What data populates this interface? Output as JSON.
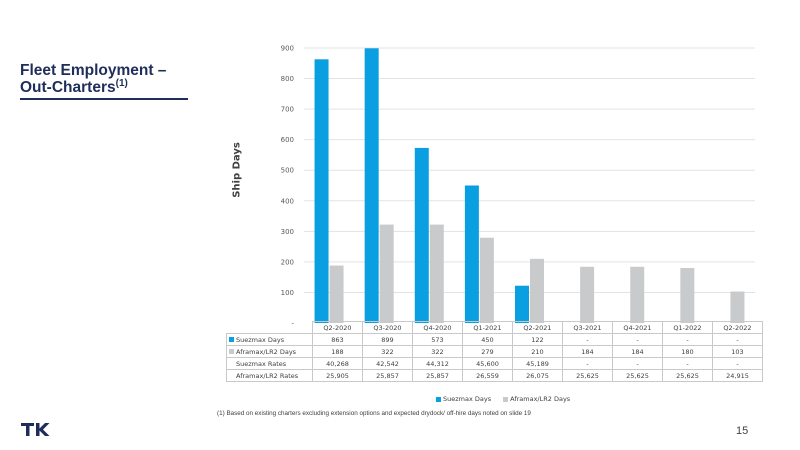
{
  "slide": {
    "title_main": "Fleet Employment –",
    "title_line2": "Out-Charters",
    "title_sup": "(1)",
    "footnote": "(1)   Based on existing charters excluding extension options and expected drydock/ off-hire days noted on slide 19",
    "page_number": "15",
    "logo": "tk-logo-icon"
  },
  "chart_data": {
    "type": "bar",
    "ylabel": "Ship Days",
    "xlabel": "",
    "ylim": [
      0,
      900
    ],
    "yticks": [
      "-",
      "100",
      "200",
      "300",
      "400",
      "500",
      "600",
      "700",
      "800",
      "900"
    ],
    "grid": true,
    "legend_position": "bottom",
    "categories": [
      "Q2-2020",
      "Q3-2020",
      "Q4-2020",
      "Q1-2021",
      "Q2-2021",
      "Q3-2021",
      "Q4-2021",
      "Q1-2022",
      "Q2-2022"
    ],
    "series": [
      {
        "name": "Suezmax Days",
        "color": "#0a9fe0",
        "values": [
          863,
          899,
          573,
          450,
          122,
          0,
          0,
          0,
          0
        ]
      },
      {
        "name": "Aframax/LR2 Days",
        "color": "#c8cacc",
        "values": [
          188,
          322,
          322,
          279,
          210,
          184,
          184,
          180,
          103
        ]
      }
    ],
    "table_rows": [
      {
        "label": "Suezmax Days",
        "key": "blue",
        "cells": [
          "863",
          "899",
          "573",
          "450",
          "122",
          "-",
          "-",
          "-",
          "-"
        ]
      },
      {
        "label": "Aframax/LR2 Days",
        "key": "gray",
        "cells": [
          "188",
          "322",
          "322",
          "279",
          "210",
          "184",
          "184",
          "180",
          "103"
        ]
      },
      {
        "label": "Suezmax Rates",
        "key": "",
        "cells": [
          "40,268",
          "42,542",
          "44,312",
          "45,600",
          "45,189",
          "-",
          "-",
          "-",
          "-"
        ]
      },
      {
        "label": "Aframax/LR2 Rates",
        "key": "",
        "cells": [
          "25,905",
          "25,857",
          "25,857",
          "26,559",
          "26,075",
          "25,625",
          "25,625",
          "25,625",
          "24,915"
        ]
      }
    ]
  }
}
